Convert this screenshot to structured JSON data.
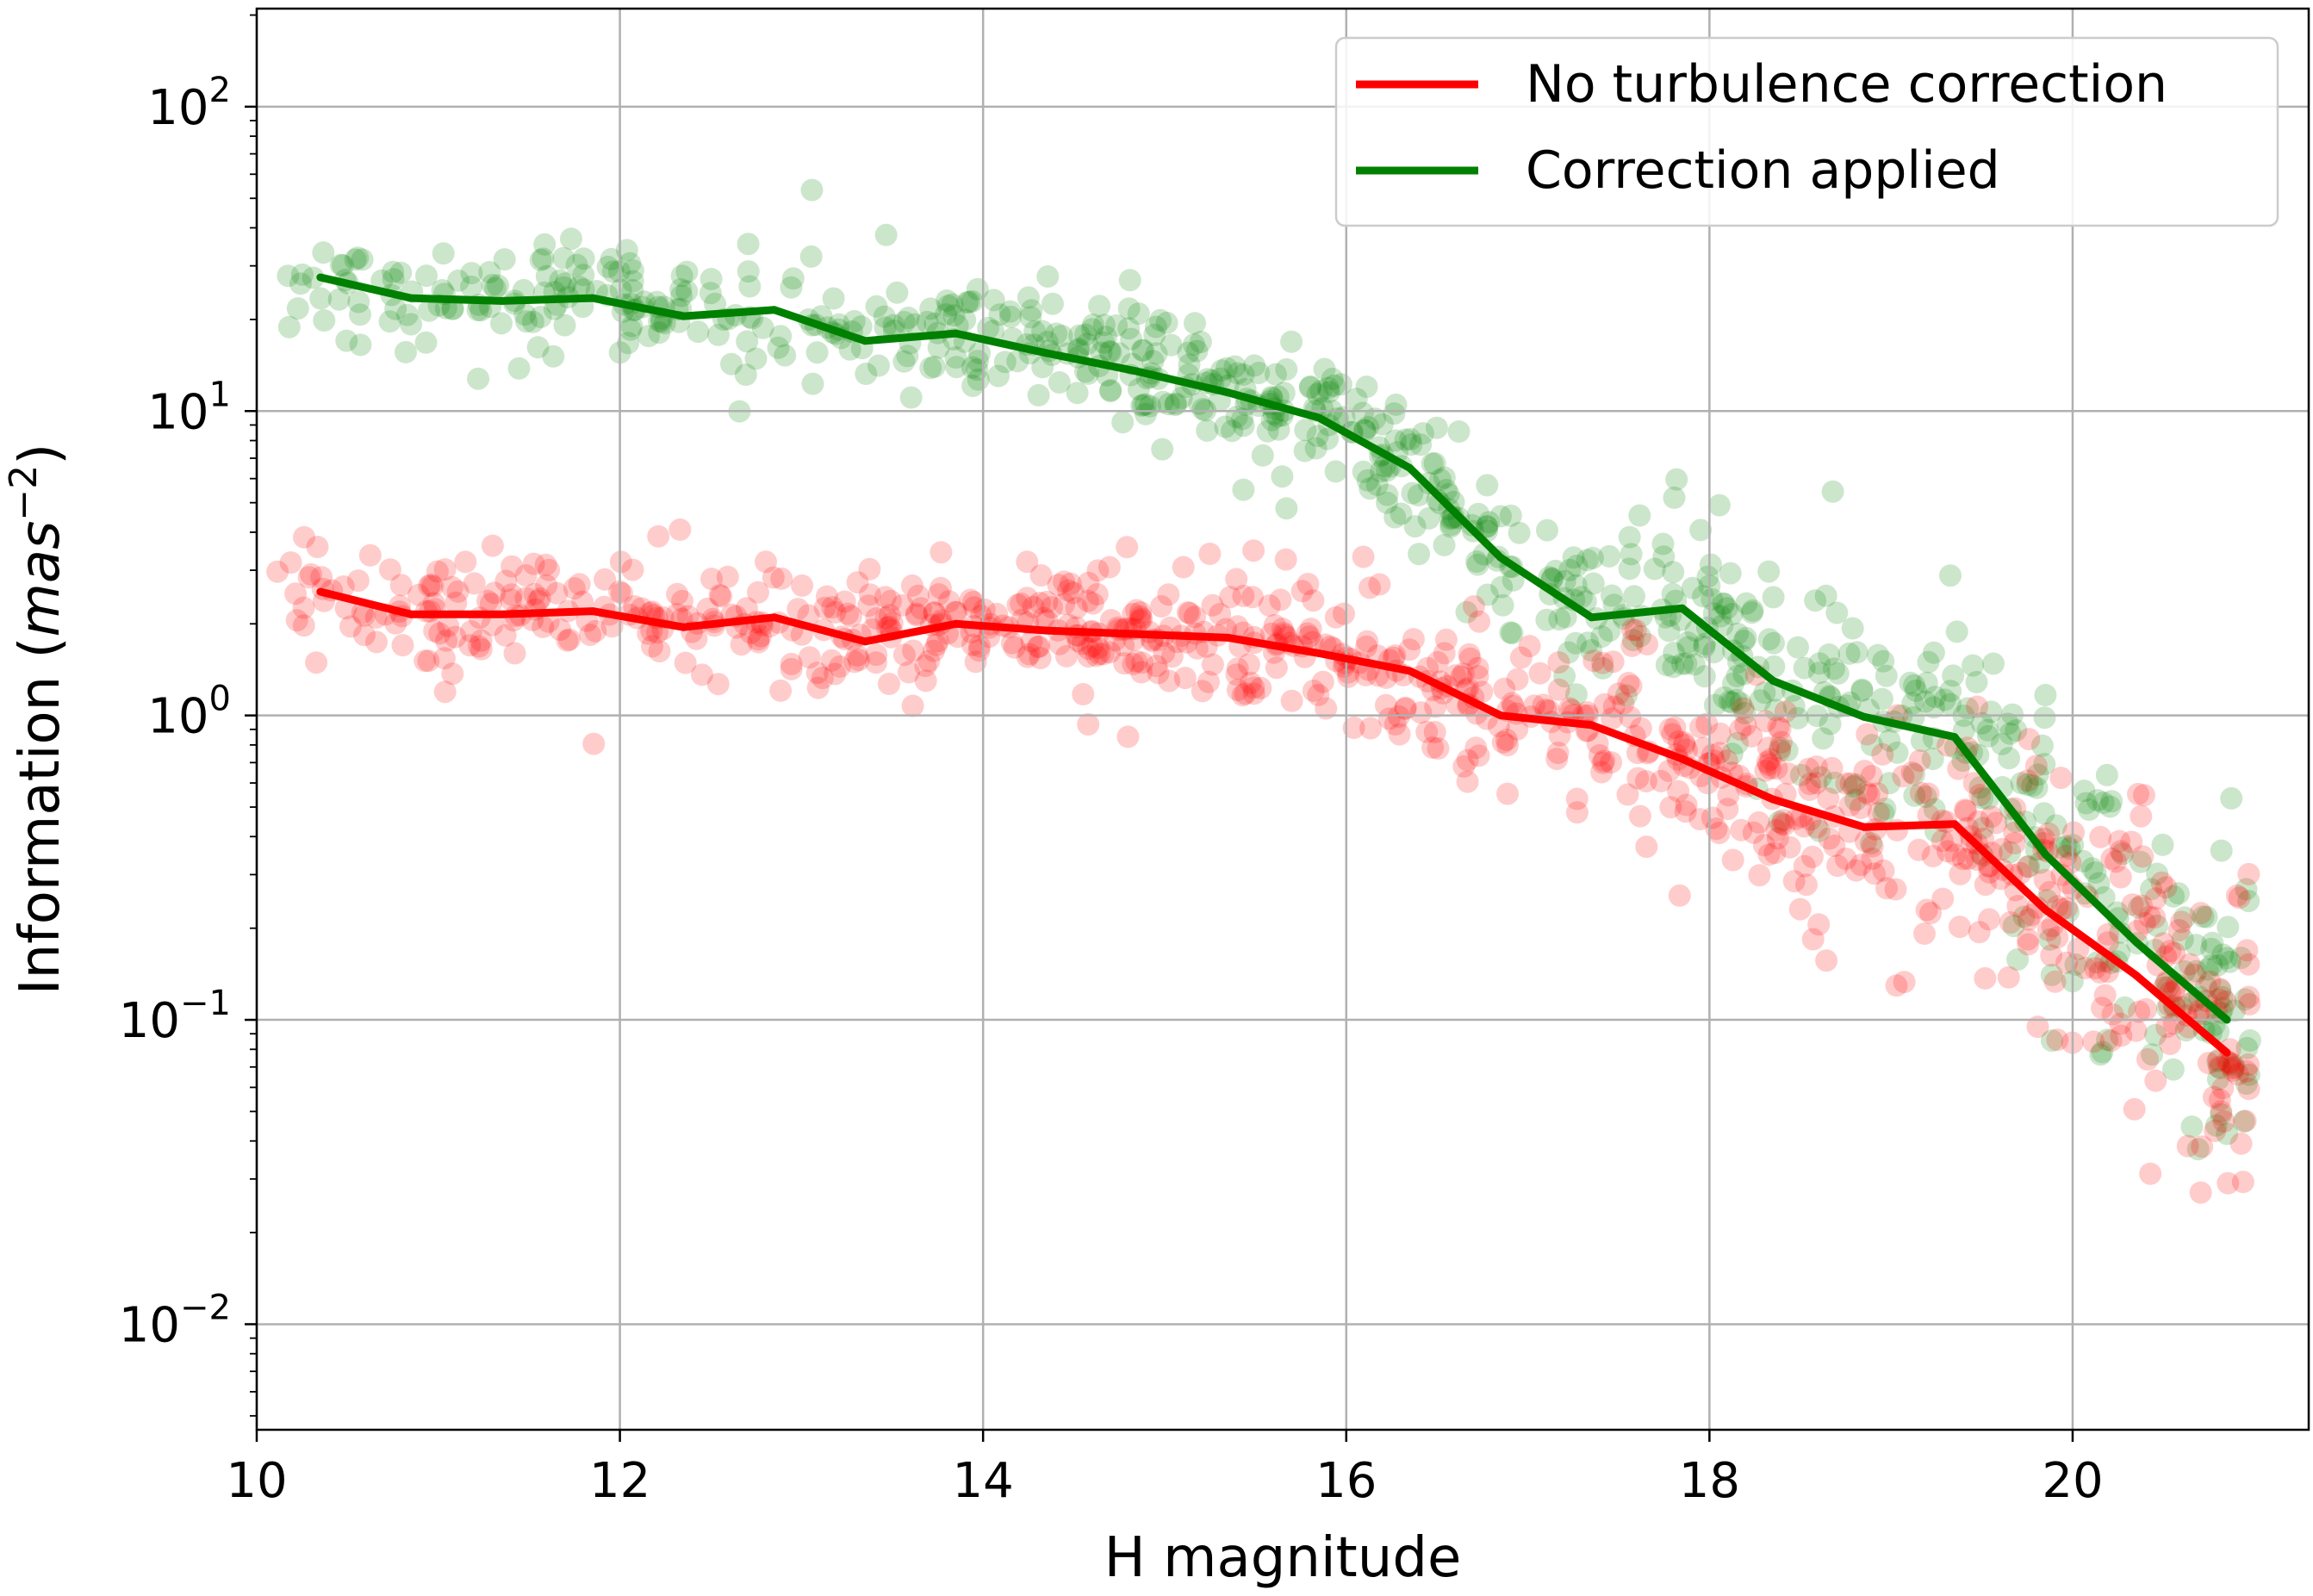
{
  "chart_data": {
    "type": "line",
    "xlabel": "H magnitude",
    "ylabel": "Information (mas⁻²)",
    "ylabel_main": "Information (",
    "ylabel_unit": "mas",
    "ylabel_exp": "−2",
    "ylabel_close": ")",
    "xlim": [
      10,
      21.3
    ],
    "ylim": [
      0.0045,
      210
    ],
    "yscale": "log",
    "grid": true,
    "legend_position": "top-right",
    "xticks": [
      10,
      12,
      14,
      16,
      18,
      20
    ],
    "xtick_labels": [
      "10",
      "12",
      "14",
      "16",
      "18",
      "20"
    ],
    "yticks": [
      0.01,
      0.1,
      1,
      10,
      100
    ],
    "ytick_bases": [
      "10",
      "10",
      "10",
      "10",
      "10"
    ],
    "ytick_exps": [
      "−2",
      "−1",
      "0",
      "1",
      "2"
    ],
    "series": [
      {
        "name": "No turbulence correction",
        "color": "#ff0000",
        "x": [
          10.35,
          10.85,
          11.35,
          11.85,
          12.35,
          12.85,
          13.35,
          13.85,
          14.35,
          14.85,
          15.35,
          15.85,
          16.35,
          16.85,
          17.35,
          17.85,
          18.35,
          18.85,
          19.35,
          19.85,
          20.35,
          20.85
        ],
        "values": [
          2.55,
          2.15,
          2.15,
          2.2,
          1.95,
          2.1,
          1.75,
          2.0,
          1.9,
          1.85,
          1.8,
          1.6,
          1.4,
          1.0,
          0.93,
          0.72,
          0.53,
          0.43,
          0.44,
          0.23,
          0.14,
          0.078
        ]
      },
      {
        "name": "Correction applied",
        "color": "#008000",
        "x": [
          10.35,
          10.85,
          11.35,
          11.85,
          12.35,
          12.85,
          13.35,
          13.85,
          14.35,
          14.85,
          15.35,
          15.85,
          16.35,
          16.85,
          17.35,
          17.85,
          18.35,
          18.85,
          19.35,
          19.85,
          20.35,
          20.85
        ],
        "values": [
          27.5,
          23.5,
          23.0,
          23.5,
          20.5,
          21.5,
          17.0,
          18.0,
          15.5,
          13.5,
          11.5,
          9.5,
          6.5,
          3.3,
          2.1,
          2.25,
          1.3,
          0.99,
          0.85,
          0.35,
          0.18,
          0.1
        ]
      }
    ],
    "scatter_alpha": 0.2
  }
}
